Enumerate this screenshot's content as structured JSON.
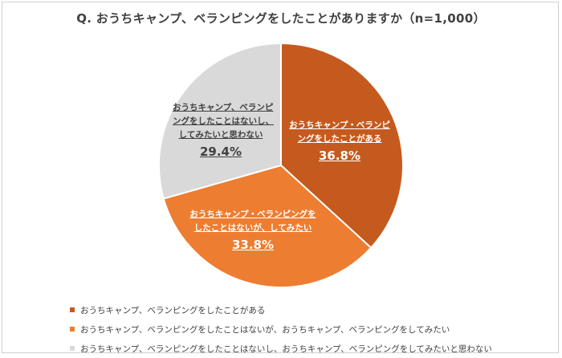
{
  "title": "Q.  おうちキャンプ、ベランピングをしたことがありますか（n=1,000）",
  "chart_data": {
    "type": "pie",
    "title": "Q.  おうちキャンプ、ベランピングをしたことがありますか（n=1,000）",
    "slices": [
      {
        "name": "おうちキャンプ、ベランピングをしたことがある",
        "label_lines": [
          "おうちキャンプ・ベランピ",
          "ングをしたことがある"
        ],
        "value": 36.8,
        "value_label": "36.8%",
        "color": "#c55a1e"
      },
      {
        "name": "おうちキャンプ、ベランピングをしたことはないが、おうちキャンプ、ベランピングをしてみたい",
        "label_lines": [
          "おうちキャンプ・ベランピングを",
          "したことはないが、してみたい"
        ],
        "value": 33.8,
        "value_label": "33.8%",
        "color": "#ed7d31"
      },
      {
        "name": "おうちキャンプ、ベランピングをしたことはないし、おうちキャンプ、ベランピングをしてみたいと思わない",
        "label_lines": [
          "おうちキャンプ、ベランピ",
          "ングをしたことはないし、",
          "してみたいと思わない"
        ],
        "value": 29.4,
        "value_label": "29.4%",
        "color": "#d9d9d9"
      }
    ],
    "start_angle": "12 o'clock",
    "direction": "clockwise",
    "legend_position": "bottom-left"
  }
}
